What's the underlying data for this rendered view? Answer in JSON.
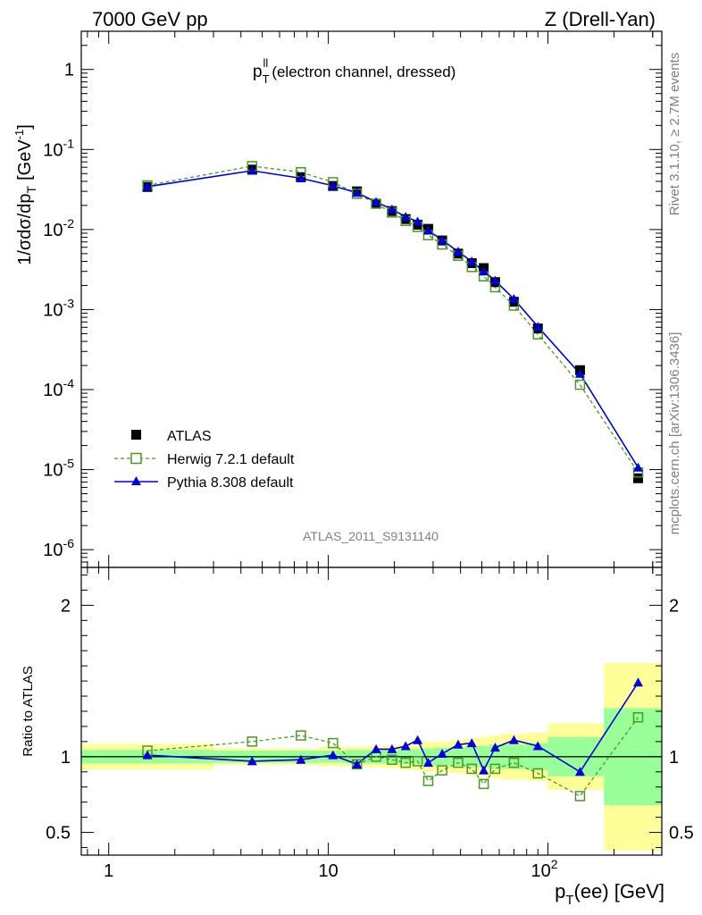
{
  "header": {
    "left": "7000 GeV pp",
    "right": "Z (Drell-Yan)"
  },
  "side_labels": {
    "rivet": "Rivet 3.1.10, ≥ 2.7M events",
    "mcplots": "mcplots.cern.ch [arXiv:1306.3436]"
  },
  "chart_data": [
    {
      "type": "scatter",
      "panel": "main",
      "title": "p_T^ll (electron channel, dressed)",
      "title_main": "p",
      "title_sub": "T",
      "title_sup": "ll",
      "title_rest": "(electron channel, dressed)",
      "ylabel": "1/σdσ/dp_T [GeV^-1]",
      "ylabel_main": "1/σdσ/dp",
      "ylabel_sub": "T",
      "ylabel_unit": "[GeV",
      "ylabel_unit_sup": "-1",
      "ylabel_close": "]",
      "xscale": "log",
      "yscale": "log",
      "xlim": [
        0.75,
        330
      ],
      "ylim": [
        6e-07,
        3
      ],
      "y_tick_labels": [
        {
          "value": 1e-06,
          "base": "10",
          "exp": "-6"
        },
        {
          "value": 1e-05,
          "base": "10",
          "exp": "-5"
        },
        {
          "value": 0.0001,
          "base": "10",
          "exp": "-4"
        },
        {
          "value": 0.001,
          "base": "10",
          "exp": "-3"
        },
        {
          "value": 0.01,
          "base": "10",
          "exp": "-2"
        },
        {
          "value": 0.1,
          "base": "10",
          "exp": "-1"
        },
        {
          "value": 1,
          "base": "1",
          "exp": ""
        }
      ],
      "watermark": "ATLAS_2011_S9131140",
      "legend_position": "lower-left",
      "series": [
        {
          "name": "ATLAS",
          "style": "filled-square",
          "color": "#000000",
          "x": [
            1.5,
            4.5,
            7.5,
            10.5,
            13.5,
            16.5,
            19.5,
            22.5,
            25.5,
            28.5,
            33.0,
            39.0,
            45.0,
            51.0,
            57.5,
            70.0,
            90.0,
            140.0,
            257.5
          ],
          "y": [
            0.034,
            0.056,
            0.045,
            0.035,
            0.03,
            0.021,
            0.017,
            0.0135,
            0.0115,
            0.0102,
            0.0073,
            0.005,
            0.0038,
            0.0033,
            0.0022,
            0.00125,
            0.00058,
            0.000175,
            7.8e-06
          ]
        },
        {
          "name": "Herwig 7.2.1 default",
          "style": "open-square-dashed",
          "color": "#4a9a22",
          "x": [
            1.5,
            4.5,
            7.5,
            10.5,
            13.5,
            16.5,
            19.5,
            22.5,
            25.5,
            28.5,
            33.0,
            39.0,
            45.0,
            51.0,
            57.5,
            70.0,
            90.0,
            140.0,
            257.5
          ],
          "y": [
            0.0356,
            0.062,
            0.052,
            0.039,
            0.028,
            0.021,
            0.0163,
            0.0128,
            0.0108,
            0.0085,
            0.0065,
            0.0047,
            0.0034,
            0.0026,
            0.0019,
            0.00112,
            0.00049,
            0.000115,
            9.2e-06
          ]
        },
        {
          "name": "Pythia 8.308 default",
          "style": "triangle-solid",
          "color": "#0000dd",
          "x": [
            1.5,
            4.5,
            7.5,
            10.5,
            13.5,
            16.5,
            19.5,
            22.5,
            25.5,
            28.5,
            33.0,
            39.0,
            45.0,
            51.0,
            57.5,
            70.0,
            90.0,
            140.0,
            257.5
          ],
          "y": [
            0.0343,
            0.0544,
            0.0437,
            0.0352,
            0.0288,
            0.0221,
            0.0179,
            0.0144,
            0.0126,
            0.0097,
            0.0074,
            0.0053,
            0.004,
            0.003,
            0.0023,
            0.00136,
            0.00061,
            0.000158,
            1.06e-05
          ]
        }
      ]
    },
    {
      "type": "scatter",
      "panel": "ratio",
      "xlabel": "p_T(ee) [GeV]",
      "xlabel_main": "p",
      "xlabel_sub": "T",
      "xlabel_rest": "(ee) [GeV]",
      "ylabel": "Ratio to ATLAS",
      "xscale": "log",
      "xlim": [
        0.75,
        330
      ],
      "ylim": [
        0.35,
        2.25
      ],
      "y_tick_labels": [
        {
          "value": 0.5,
          "label": "0.5"
        },
        {
          "value": 1,
          "label": "1"
        },
        {
          "value": 2,
          "label": "2"
        }
      ],
      "x_tick_labels": [
        {
          "value": 1,
          "base": "1",
          "exp": ""
        },
        {
          "value": 10,
          "base": "10",
          "exp": ""
        },
        {
          "value": 100,
          "base": "10",
          "exp": "2"
        }
      ],
      "bin_edges": [
        0.75,
        3,
        6,
        9,
        12,
        15,
        18,
        21,
        24,
        27,
        30,
        36,
        42,
        48,
        54,
        61,
        80,
        100,
        180,
        330
      ],
      "band_stat": [
        0.045,
        0.04,
        0.04,
        0.04,
        0.045,
        0.045,
        0.045,
        0.05,
        0.05,
        0.055,
        0.06,
        0.06,
        0.07,
        0.07,
        0.08,
        0.08,
        0.09,
        0.13,
        0.32
      ],
      "band_total": [
        0.085,
        0.055,
        0.055,
        0.065,
        0.065,
        0.07,
        0.075,
        0.085,
        0.09,
        0.1,
        0.1,
        0.11,
        0.12,
        0.13,
        0.14,
        0.15,
        0.16,
        0.22,
        0.62
      ],
      "series": [
        {
          "name": "Herwig 7.2.1 default",
          "color": "#4a9a22",
          "x": [
            1.5,
            4.5,
            7.5,
            10.5,
            13.5,
            16.5,
            19.5,
            22.5,
            25.5,
            28.5,
            33.0,
            39.0,
            45.0,
            51.0,
            57.5,
            70.0,
            90.0,
            140.0,
            257.5
          ],
          "y": [
            1.04,
            1.1,
            1.14,
            1.09,
            0.95,
            1.0,
            0.98,
            0.96,
            0.97,
            0.84,
            0.91,
            0.96,
            0.92,
            0.82,
            0.92,
            0.96,
            0.89,
            0.74,
            1.26
          ]
        },
        {
          "name": "Pythia 8.308 default",
          "color": "#0000dd",
          "x": [
            1.5,
            4.5,
            7.5,
            10.5,
            13.5,
            16.5,
            19.5,
            22.5,
            25.5,
            28.5,
            33.0,
            39.0,
            45.0,
            51.0,
            57.5,
            70.0,
            90.0,
            140.0,
            257.5
          ],
          "y": [
            1.01,
            0.97,
            0.98,
            1.01,
            0.95,
            1.05,
            1.05,
            1.07,
            1.11,
            0.96,
            1.02,
            1.08,
            1.09,
            0.91,
            1.06,
            1.11,
            1.07,
            0.9,
            1.49
          ]
        }
      ]
    }
  ]
}
